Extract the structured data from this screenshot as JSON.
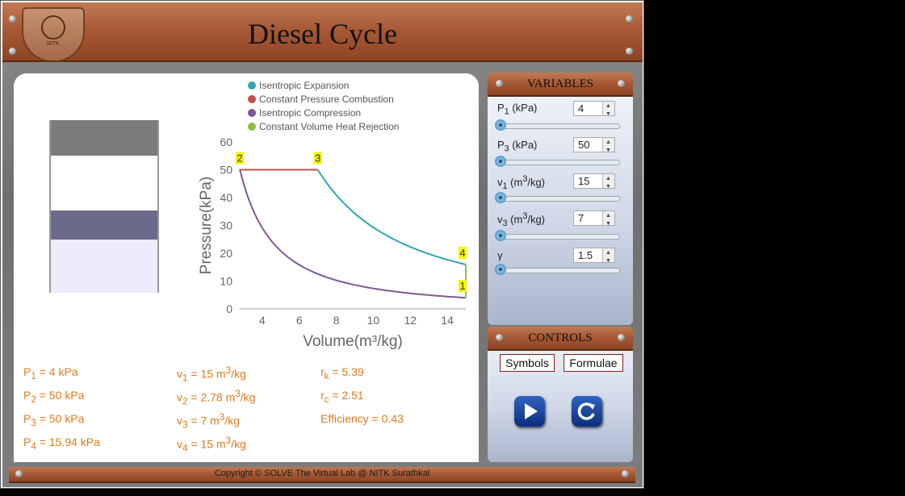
{
  "app": {
    "title": "Diesel Cycle",
    "logo_text": "NITK"
  },
  "legend": [
    {
      "label": "Isentropic Expansion",
      "color": "#2ea6b2"
    },
    {
      "label": "Constant Pressure Combustion",
      "color": "#c0504d"
    },
    {
      "label": "Isentropic Compression",
      "color": "#7c5a94"
    },
    {
      "label": "Constant Volume Heat Rejection",
      "color": "#8dbf3f"
    }
  ],
  "chart_data": {
    "type": "line",
    "xlabel": "Volume(m³/kg)",
    "ylabel": "Pressure(kPa)",
    "xlim": [
      2.78,
      15
    ],
    "ylim": [
      0,
      60
    ],
    "xticks": [
      4,
      6,
      8,
      10,
      12,
      14
    ],
    "yticks": [
      0,
      10,
      20,
      30,
      40,
      50,
      60
    ],
    "gamma": 1.5,
    "points": [
      {
        "label": "1",
        "v": 15,
        "p": 4
      },
      {
        "label": "2",
        "v": 2.78,
        "p": 50
      },
      {
        "label": "3",
        "v": 7,
        "p": 50
      },
      {
        "label": "4",
        "v": 15,
        "p": 15.94
      }
    ],
    "series": [
      {
        "name": "Isentropic Expansion",
        "from": "3",
        "to": "4",
        "kind": "isentropic"
      },
      {
        "name": "Constant Pressure Combustion",
        "from": "2",
        "to": "3",
        "kind": "constant-p"
      },
      {
        "name": "Isentropic Compression",
        "from": "1",
        "to": "2",
        "kind": "isentropic"
      },
      {
        "name": "Constant Volume Heat Rejection",
        "from": "4",
        "to": "1",
        "kind": "constant-v"
      }
    ]
  },
  "results": {
    "p1": "P<sub>1</sub> = 4 kPa",
    "p2": "P<sub>2</sub> = 50 kPa",
    "p3": "P<sub>3</sub> = 50 kPa",
    "p4": "P<sub>4</sub> = 15.94 kPa",
    "v1": "v<sub>1</sub> = 15 m<sup>3</sup>/kg",
    "v2": "v<sub>2</sub> = 2.78 m<sup>3</sup>/kg",
    "v3": "v<sub>3</sub> = 7 m<sup>3</sup>/kg",
    "v4": "v<sub>4</sub> = 15 m<sup>3</sup>/kg",
    "rk": "r<sub>k</sub> = 5.39",
    "rc": "r<sub>c</sub> = 2.51",
    "eff": "Efficiency = 0.43"
  },
  "variables": {
    "heading": "VARIABLES",
    "items": [
      {
        "label": "P<sub>1</sub> (kPa)",
        "value": "4"
      },
      {
        "label": "P<sub>3</sub> (kPa)",
        "value": "50"
      },
      {
        "label": "v<sub>1</sub> (m<sup>3</sup>/kg)",
        "value": "15"
      },
      {
        "label": "v<sub>3</sub> (m<sup>3</sup>/kg)",
        "value": "7"
      },
      {
        "label": "γ",
        "value": "1.5"
      }
    ]
  },
  "controls": {
    "heading": "CONTROLS",
    "symbols_label": "Symbols",
    "formulae_label": "Formulae",
    "play_icon": "play-icon",
    "reset_icon": "reset-icon"
  },
  "footer": {
    "copyright": "Copyright © SOLVE The Virtual Lab @ NITK Surathkal"
  }
}
